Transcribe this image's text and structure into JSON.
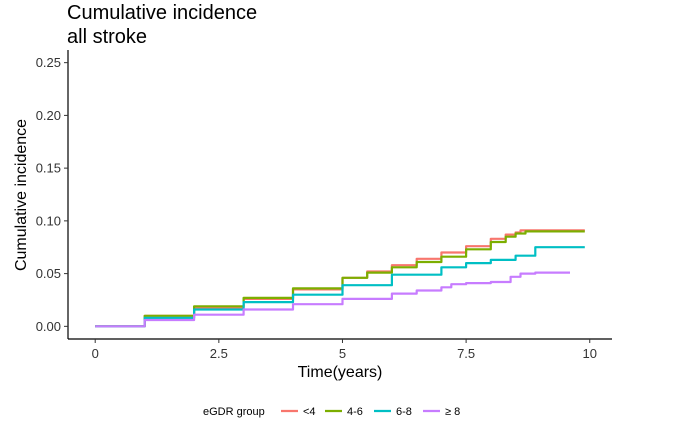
{
  "chart_data": {
    "type": "line",
    "title": "Cumulative incidence",
    "subtitle": "all stroke",
    "xlabel": "Time(years)",
    "ylabel": "Cumulative incidence",
    "xlim": [
      -0.55,
      10.45
    ],
    "ylim": [
      -0.012,
      0.262
    ],
    "x_ticks": [
      0,
      2.5,
      5,
      7.5,
      10
    ],
    "x_tick_labels": [
      "0",
      "2.5",
      "5",
      "7.5",
      "10"
    ],
    "y_ticks": [
      0,
      0.05,
      0.1,
      0.15,
      0.2,
      0.25
    ],
    "y_tick_labels": [
      "0.00",
      "0.05",
      "0.10",
      "0.15",
      "0.20",
      "0.25"
    ],
    "grid": false,
    "step": true,
    "legend": {
      "title": "eGDR group",
      "position": "bottom"
    },
    "series": [
      {
        "name": "<4",
        "color": "#F8766D",
        "x": [
          0,
          1,
          2,
          3,
          4,
          5,
          5.5,
          6,
          6.5,
          7,
          7.5,
          8,
          8.3,
          8.5,
          8.6,
          9.9
        ],
        "y": [
          0,
          0.01,
          0.018,
          0.026,
          0.035,
          0.046,
          0.052,
          0.058,
          0.064,
          0.07,
          0.076,
          0.083,
          0.087,
          0.089,
          0.091,
          0.091
        ]
      },
      {
        "name": "4-6",
        "color": "#7CAE00",
        "x": [
          0,
          1,
          2,
          3,
          4,
          5,
          5.5,
          6,
          6.5,
          7,
          7.5,
          8,
          8.3,
          8.5,
          8.7,
          9.9
        ],
        "y": [
          0,
          0.01,
          0.019,
          0.027,
          0.036,
          0.046,
          0.051,
          0.056,
          0.061,
          0.066,
          0.073,
          0.08,
          0.085,
          0.088,
          0.09,
          0.09
        ]
      },
      {
        "name": "6-8",
        "color": "#00BFC4",
        "x": [
          0,
          1,
          2,
          3,
          4,
          5,
          6,
          7,
          7.5,
          8,
          8.5,
          8.9,
          9.9
        ],
        "y": [
          0,
          0.008,
          0.016,
          0.023,
          0.03,
          0.039,
          0.049,
          0.056,
          0.06,
          0.063,
          0.067,
          0.075,
          0.075
        ]
      },
      {
        "name": "≥ 8",
        "color": "#C77CFF",
        "x": [
          0,
          1,
          2,
          3,
          4,
          5,
          6,
          6.5,
          7,
          7.2,
          7.5,
          8,
          8.4,
          8.6,
          8.9,
          9.6
        ],
        "y": [
          0,
          0.006,
          0.011,
          0.016,
          0.021,
          0.026,
          0.031,
          0.034,
          0.037,
          0.04,
          0.041,
          0.042,
          0.047,
          0.05,
          0.051,
          0.051
        ]
      }
    ]
  }
}
